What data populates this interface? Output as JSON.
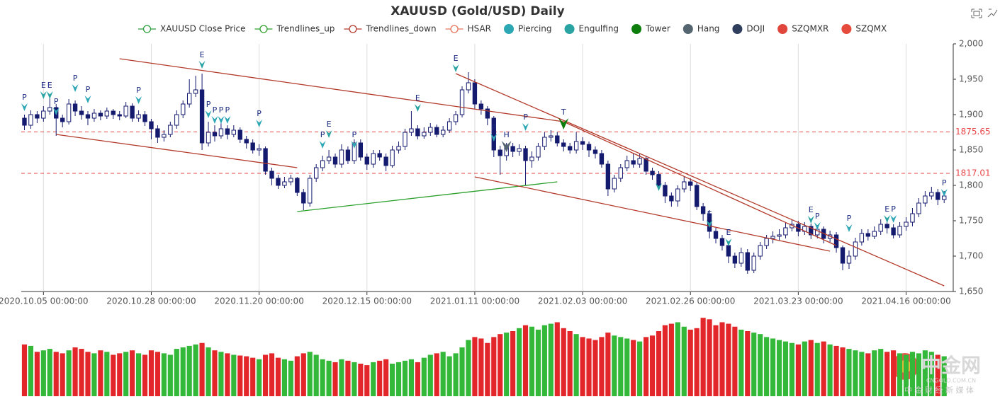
{
  "chart_data": {
    "type": "candlestick",
    "title": "XAUUSD (Gold/USD) Daily",
    "categories": [
      null,
      null,
      null,
      "2020.10.05 00:00:00",
      null,
      null,
      null,
      null,
      null,
      null,
      null,
      null,
      null,
      null,
      null,
      null,
      null,
      null,
      null,
      null,
      "2020.10.28 00:00:00",
      null,
      null,
      null,
      null,
      null,
      null,
      null,
      null,
      null,
      null,
      null,
      null,
      null,
      null,
      null,
      null,
      "2020.11.20 00:00:00",
      null,
      null,
      null,
      null,
      null,
      null,
      null,
      null,
      null,
      null,
      null,
      null,
      null,
      null,
      null,
      null,
      "2020.12.15 00:00:00",
      null,
      null,
      null,
      null,
      null,
      null,
      null,
      null,
      null,
      null,
      null,
      null,
      null,
      null,
      null,
      null,
      "2021.01.11 00:00:00",
      null,
      null,
      null,
      null,
      null,
      null,
      null,
      null,
      null,
      null,
      null,
      null,
      null,
      null,
      null,
      null,
      "2021.02.03 00:00:00",
      null,
      null,
      null,
      null,
      null,
      null,
      null,
      null,
      null,
      null,
      null,
      null,
      null,
      null,
      null,
      null,
      "2021.02.26 00:00:00",
      null,
      null,
      null,
      null,
      null,
      null,
      null,
      null,
      null,
      null,
      null,
      null,
      null,
      null,
      null,
      null,
      "2021.03.23 00:00:00",
      null,
      null,
      null,
      null,
      null,
      null,
      null,
      null,
      null,
      null,
      null,
      null,
      null,
      null,
      null,
      null,
      "2021.04.16 00:00:00",
      null,
      null,
      null,
      null,
      null,
      null
    ],
    "open": [
      1895,
      1885,
      1900,
      1895,
      1905,
      1910,
      1895,
      1890,
      1915,
      1905,
      1900,
      1895,
      1902,
      1898,
      1905,
      1900,
      1898,
      1912,
      1895,
      1900,
      1890,
      1880,
      1868,
      1872,
      1885,
      1900,
      1915,
      1930,
      1935,
      1860,
      1875,
      1870,
      1880,
      1872,
      1878,
      1865,
      1860,
      1850,
      1852,
      1820,
      1810,
      1800,
      1805,
      1810,
      1790,
      1775,
      1810,
      1825,
      1835,
      1840,
      1830,
      1850,
      1835,
      1860,
      1840,
      1830,
      1845,
      1840,
      1828,
      1850,
      1855,
      1875,
      1880,
      1870,
      1875,
      1882,
      1872,
      1878,
      1890,
      1900,
      1935,
      1945,
      1915,
      1908,
      1895,
      1850,
      1842,
      1855,
      1848,
      1852,
      1835,
      1840,
      1855,
      1868,
      1870,
      1860,
      1855,
      1850,
      1862,
      1858,
      1850,
      1845,
      1830,
      1795,
      1810,
      1825,
      1835,
      1830,
      1838,
      1820,
      1815,
      1800,
      1785,
      1778,
      1795,
      1805,
      1800,
      1770,
      1760,
      1735,
      1725,
      1715,
      1700,
      1690,
      1705,
      1680,
      1700,
      1715,
      1725,
      1728,
      1730,
      1740,
      1745,
      1735,
      1742,
      1730,
      1738,
      1725,
      1730,
      1712,
      1690,
      1700,
      1720,
      1732,
      1728,
      1735,
      1745,
      1740,
      1730,
      1742,
      1748,
      1760,
      1775,
      1785,
      1790,
      1780
    ],
    "high": [
      1900,
      1906,
      1905,
      1912,
      1925,
      1915,
      1900,
      1922,
      1920,
      1912,
      1905,
      1908,
      1906,
      1910,
      1908,
      1905,
      1918,
      1916,
      1906,
      1905,
      1894,
      1885,
      1878,
      1890,
      1906,
      1920,
      1950,
      1955,
      1958,
      1890,
      1885,
      1888,
      1885,
      1885,
      1882,
      1870,
      1865,
      1858,
      1855,
      1825,
      1815,
      1812,
      1815,
      1812,
      1795,
      1815,
      1830,
      1842,
      1850,
      1845,
      1858,
      1855,
      1865,
      1865,
      1845,
      1850,
      1850,
      1845,
      1856,
      1862,
      1880,
      1905,
      1885,
      1882,
      1888,
      1886,
      1884,
      1895,
      1905,
      1940,
      1960,
      1950,
      1920,
      1912,
      1898,
      1856,
      1860,
      1860,
      1858,
      1856,
      1848,
      1860,
      1875,
      1878,
      1875,
      1865,
      1860,
      1875,
      1868,
      1862,
      1855,
      1850,
      1835,
      1815,
      1830,
      1842,
      1845,
      1845,
      1842,
      1825,
      1820,
      1805,
      1790,
      1800,
      1812,
      1810,
      1805,
      1775,
      1765,
      1740,
      1730,
      1720,
      1705,
      1712,
      1710,
      1705,
      1720,
      1730,
      1735,
      1738,
      1748,
      1752,
      1750,
      1748,
      1746,
      1744,
      1742,
      1736,
      1734,
      1715,
      1708,
      1726,
      1738,
      1738,
      1742,
      1752,
      1750,
      1745,
      1748,
      1755,
      1768,
      1782,
      1792,
      1798,
      1795,
      1792
    ],
    "low": [
      1878,
      1880,
      1888,
      1890,
      1900,
      1870,
      1882,
      1886,
      1898,
      1893,
      1885,
      1890,
      1892,
      1894,
      1894,
      1892,
      1895,
      1890,
      1890,
      1884,
      1865,
      1860,
      1862,
      1868,
      1880,
      1895,
      1910,
      1925,
      1850,
      1855,
      1862,
      1866,
      1865,
      1868,
      1860,
      1852,
      1845,
      1842,
      1815,
      1800,
      1795,
      1796,
      1800,
      1785,
      1765,
      1770,
      1805,
      1820,
      1830,
      1825,
      1825,
      1830,
      1830,
      1835,
      1822,
      1825,
      1835,
      1820,
      1825,
      1845,
      1850,
      1870,
      1865,
      1866,
      1870,
      1868,
      1868,
      1874,
      1885,
      1896,
      1930,
      1908,
      1900,
      1885,
      1840,
      1815,
      1835,
      1840,
      1842,
      1800,
      1825,
      1835,
      1850,
      1862,
      1855,
      1848,
      1845,
      1845,
      1850,
      1840,
      1838,
      1825,
      1785,
      1790,
      1805,
      1820,
      1825,
      1825,
      1815,
      1808,
      1795,
      1775,
      1770,
      1770,
      1790,
      1792,
      1765,
      1750,
      1725,
      1718,
      1708,
      1690,
      1683,
      1685,
      1675,
      1676,
      1695,
      1710,
      1718,
      1722,
      1725,
      1735,
      1728,
      1730,
      1724,
      1725,
      1718,
      1720,
      1705,
      1680,
      1682,
      1695,
      1715,
      1722,
      1724,
      1730,
      1732,
      1725,
      1726,
      1736,
      1742,
      1755,
      1770,
      1780,
      1772,
      1775
    ],
    "close": [
      1885,
      1900,
      1895,
      1905,
      1910,
      1895,
      1890,
      1915,
      1905,
      1900,
      1895,
      1902,
      1898,
      1905,
      1900,
      1898,
      1912,
      1895,
      1900,
      1890,
      1880,
      1868,
      1872,
      1885,
      1900,
      1915,
      1930,
      1935,
      1860,
      1875,
      1870,
      1880,
      1872,
      1878,
      1865,
      1860,
      1850,
      1852,
      1820,
      1810,
      1800,
      1805,
      1810,
      1790,
      1775,
      1810,
      1825,
      1835,
      1840,
      1830,
      1850,
      1835,
      1860,
      1840,
      1830,
      1845,
      1840,
      1828,
      1850,
      1855,
      1875,
      1880,
      1870,
      1875,
      1882,
      1872,
      1878,
      1890,
      1900,
      1935,
      1945,
      1915,
      1908,
      1895,
      1850,
      1842,
      1855,
      1848,
      1852,
      1835,
      1840,
      1855,
      1868,
      1870,
      1860,
      1855,
      1850,
      1862,
      1858,
      1850,
      1845,
      1830,
      1795,
      1810,
      1825,
      1835,
      1830,
      1838,
      1820,
      1815,
      1800,
      1785,
      1778,
      1795,
      1805,
      1800,
      1770,
      1760,
      1735,
      1725,
      1715,
      1700,
      1690,
      1705,
      1680,
      1700,
      1715,
      1725,
      1728,
      1730,
      1740,
      1745,
      1735,
      1742,
      1730,
      1738,
      1725,
      1730,
      1712,
      1690,
      1700,
      1720,
      1732,
      1728,
      1735,
      1745,
      1740,
      1730,
      1742,
      1748,
      1760,
      1775,
      1785,
      1790,
      1780,
      1785
    ],
    "volume": [
      70,
      68,
      60,
      62,
      64,
      60,
      58,
      62,
      66,
      64,
      60,
      58,
      62,
      60,
      56,
      58,
      60,
      62,
      58,
      56,
      62,
      60,
      58,
      56,
      64,
      66,
      68,
      70,
      72,
      66,
      62,
      60,
      58,
      56,
      55,
      54,
      52,
      50,
      56,
      58,
      52,
      50,
      48,
      54,
      58,
      60,
      56,
      50,
      48,
      46,
      50,
      48,
      46,
      44,
      42,
      46,
      48,
      50,
      44,
      46,
      48,
      50,
      46,
      52,
      56,
      58,
      60,
      54,
      58,
      66,
      76,
      80,
      78,
      72,
      80,
      84,
      86,
      88,
      92,
      96,
      94,
      90,
      96,
      98,
      100,
      92,
      88,
      84,
      80,
      78,
      76,
      80,
      86,
      82,
      80,
      78,
      76,
      74,
      80,
      82,
      88,
      96,
      98,
      100,
      94,
      90,
      92,
      106,
      104,
      96,
      100,
      98,
      94,
      90,
      88,
      86,
      84,
      80,
      78,
      76,
      74,
      72,
      70,
      74,
      76,
      72,
      74,
      70,
      68,
      66,
      64,
      62,
      60,
      58,
      62,
      64,
      60,
      62,
      58,
      56,
      60,
      58,
      62,
      60,
      56,
      54
    ],
    "ylim": [
      1650,
      2000
    ],
    "yticks": [
      {
        "value": 1650,
        "label": "1,650"
      },
      {
        "value": 1700,
        "label": "1,700"
      },
      {
        "value": 1750,
        "label": "1,750"
      },
      {
        "value": 1800,
        "label": "1,800"
      },
      {
        "value": 1850,
        "label": "1,850"
      },
      {
        "value": 1900,
        "label": "1,900"
      },
      {
        "value": 1950,
        "label": "1,950"
      },
      {
        "value": 2000,
        "label": "2,000"
      }
    ],
    "vlim": [
      0,
      110
    ],
    "up_color": "#ffffff",
    "down_color": "#141a6e",
    "candle_border": "#141a6e",
    "volume_up_color": "#33b83a",
    "volume_down_color": "#e3262a",
    "hlines": [
      1875.65,
      1817.01
    ],
    "hline_color": "#e8474a",
    "grid": true,
    "series": [
      {
        "name": "XAUUSD Close Price",
        "color": "#2e9e3e",
        "icon": "line"
      },
      {
        "name": "Trendlines_up",
        "color": "#2ca02c",
        "icon": "line",
        "segments": [
          [
            [
              43,
              1763
            ],
            [
              84,
              1805
            ]
          ]
        ]
      },
      {
        "name": "Trendlines_down",
        "color": "#b33a2b",
        "icon": "line",
        "segments": [
          [
            [
              15,
              1979
            ],
            [
              85,
              1890
            ]
          ],
          [
            [
              68,
              1958
            ],
            [
              145,
              1658
            ]
          ],
          [
            [
              85,
              1890
            ],
            [
              128,
              1715
            ]
          ],
          [
            [
              5,
              1872
            ],
            [
              43,
              1825
            ]
          ],
          [
            [
              71,
              1812
            ],
            [
              127,
              1707
            ]
          ]
        ]
      },
      {
        "name": "HSAR",
        "color": "#e8735a",
        "icon": "line"
      },
      {
        "name": "Piercing",
        "color": "#2ea7b5",
        "icon": "dot",
        "label": "P",
        "x": [
          0,
          5,
          8,
          10,
          18,
          29,
          30,
          31,
          32,
          37,
          47,
          52,
          74,
          79,
          125,
          130,
          137,
          145
        ],
        "y": [
          1905,
          1899,
          1932,
          1916,
          1915,
          1895,
          1887,
          1887,
          1887,
          1882,
          1852,
          1852,
          1862,
          1877,
          1737,
          1734,
          1747,
          1784
        ]
      },
      {
        "name": "Engulfing",
        "color": "#2aa3a3",
        "icon": "dot",
        "label": "E",
        "x": [
          3,
          4,
          28,
          48,
          62,
          68,
          100,
          108,
          111,
          124,
          136
        ],
        "y": [
          1922,
          1922,
          1965,
          1867,
          1904,
          1960,
          1792,
          1740,
          1714,
          1746,
          1747
        ]
      },
      {
        "name": "Tower",
        "color": "#0d7d0d",
        "icon": "dot",
        "label": "T",
        "x": [
          85
        ],
        "y": [
          1879
        ]
      },
      {
        "name": "Hang",
        "color": "#546570",
        "icon": "dot",
        "label": "H",
        "x": [
          76
        ],
        "y": [
          1847
        ]
      },
      {
        "name": "DOJI",
        "color": "#2f3e5c",
        "icon": "dot"
      },
      {
        "name": "SZQMXR",
        "color": "#e0463c",
        "icon": "dot"
      },
      {
        "name": "SZQMX",
        "color": "#e64a3c",
        "icon": "dot"
      }
    ],
    "watermark": {
      "name": "中金网",
      "domain": "CNGOLD.COM.CN",
      "slogan": "中 金 财 经 新 媒 体"
    }
  }
}
